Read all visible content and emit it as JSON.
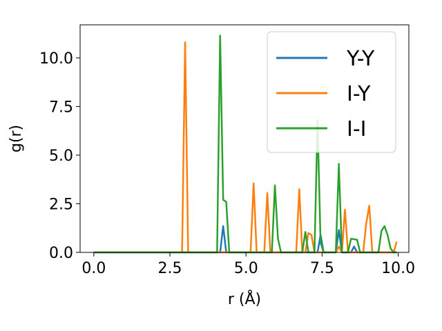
{
  "chart_data": {
    "type": "line",
    "xlabel": "r (Å)",
    "ylabel": "g(r)",
    "xlim": [
      -0.45,
      10.35
    ],
    "ylim": [
      0,
      11.7
    ],
    "xticks": [
      0.0,
      2.5,
      5.0,
      7.5,
      10.0
    ],
    "xtick_labels": [
      "0.0",
      "2.5",
      "5.0",
      "7.5",
      "10.0"
    ],
    "yticks": [
      0.0,
      2.5,
      5.0,
      7.5,
      10.0
    ],
    "ytick_labels": [
      "0.0",
      "2.5",
      "5.0",
      "7.5",
      "10.0"
    ],
    "grid": false,
    "legend_position": "top-right",
    "series": [
      {
        "name": "Y-Y",
        "color": "#1f77b4",
        "x": [
          0,
          4.15,
          4.25,
          4.35,
          7.35,
          7.45,
          7.55,
          7.95,
          8.05,
          8.15,
          8.45,
          8.55,
          8.65,
          9.95
        ],
        "y": [
          0,
          0,
          1.35,
          0,
          0,
          0.9,
          0,
          0,
          1.15,
          0,
          0,
          0.3,
          0,
          0
        ]
      },
      {
        "name": "I-Y",
        "color": "#ff7f0e",
        "x": [
          0,
          2.9,
          3.0,
          3.1,
          5.15,
          5.25,
          5.35,
          5.6,
          5.7,
          5.8,
          6.65,
          6.75,
          6.85,
          6.95,
          7.05,
          7.15,
          7.25,
          7.95,
          8.05,
          8.15,
          8.25,
          8.35,
          8.85,
          8.95,
          9.05,
          9.15,
          9.75,
          9.85,
          9.95
        ],
        "y": [
          0,
          0,
          10.8,
          0,
          0,
          3.55,
          0,
          0,
          3.05,
          0,
          0,
          3.25,
          0,
          0,
          1.0,
          0.9,
          0,
          0,
          0.3,
          0,
          2.2,
          0,
          0,
          1.5,
          2.4,
          0,
          0,
          0,
          0.55
        ]
      },
      {
        "name": "I-I",
        "color": "#2ca02c",
        "x": [
          0,
          4.05,
          4.15,
          4.25,
          4.35,
          4.45,
          5.85,
          5.95,
          6.05,
          6.15,
          6.85,
          6.95,
          7.05,
          7.25,
          7.35,
          7.45,
          7.55,
          7.95,
          8.05,
          8.15,
          8.35,
          8.45,
          8.65,
          8.75,
          9.35,
          9.45,
          9.55,
          9.65,
          9.75,
          9.85,
          9.95
        ],
        "y": [
          0,
          0,
          11.15,
          2.7,
          2.6,
          0,
          0,
          3.45,
          0.7,
          0,
          0,
          1.05,
          0,
          0,
          6.8,
          0.5,
          0,
          0,
          4.55,
          0,
          0,
          0.7,
          0.65,
          0,
          0,
          1.1,
          1.35,
          0.9,
          0.2,
          0,
          0
        ]
      }
    ]
  }
}
